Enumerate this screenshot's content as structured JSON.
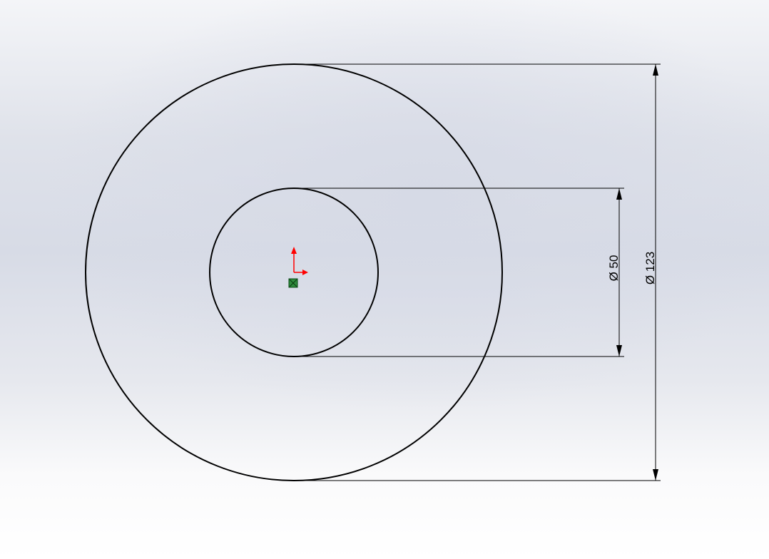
{
  "sketch": {
    "dimensions": [
      {
        "label": "Ø 50",
        "value": 50
      },
      {
        "label": "Ø 123",
        "value": 123
      }
    ],
    "colors": {
      "geometry": "#000000",
      "origin_axis": "#ff0000",
      "origin_point": "#2e8b3c"
    }
  }
}
